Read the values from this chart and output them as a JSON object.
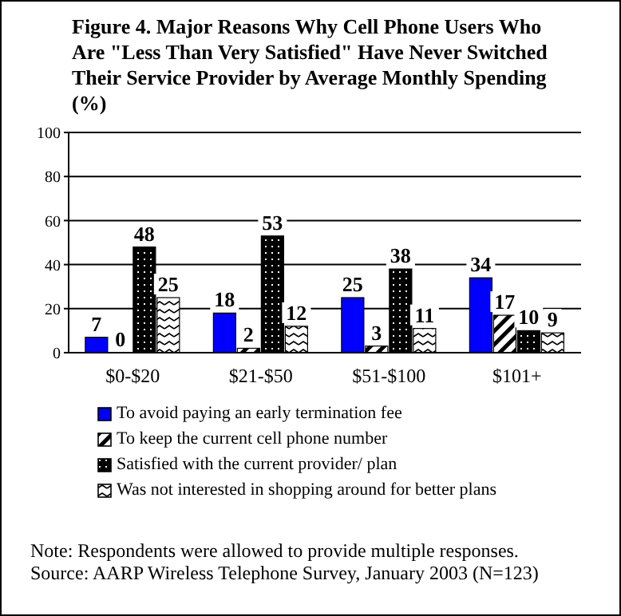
{
  "chart_data": {
    "type": "bar",
    "title": "Figure 4.  Major Reasons Why Cell Phone Users Who Are \"Less Than Very Satisfied\" Have Never Switched Their Service Provider by Average Monthly Spending (%)",
    "categories": [
      "$0-$20",
      "$21-$50",
      "$51-$100",
      "$101+"
    ],
    "series": [
      {
        "name": "To avoid paying an early termination fee",
        "color": "#0000ff",
        "values": [
          7,
          18,
          25,
          34
        ]
      },
      {
        "name": "To keep the current cell phone number",
        "color": "#000000",
        "values": [
          0,
          2,
          3,
          17
        ]
      },
      {
        "name": "Satisfied with the current provider/ plan",
        "color": "#000000",
        "values": [
          48,
          53,
          38,
          10
        ]
      },
      {
        "name": "Was not interested in shopping around for better plans",
        "color": "#000000",
        "values": [
          25,
          12,
          11,
          9
        ]
      }
    ],
    "ylim": [
      0,
      100
    ],
    "yticks": [
      0,
      20,
      40,
      60,
      80,
      100
    ],
    "grid": "y",
    "legend": "bottom",
    "data_labels": true,
    "annotations": [
      "Note: Respondents were allowed to provide multiple responses.",
      "Source: AARP Wireless Telephone Survey, January 2003 (N=123)"
    ]
  }
}
